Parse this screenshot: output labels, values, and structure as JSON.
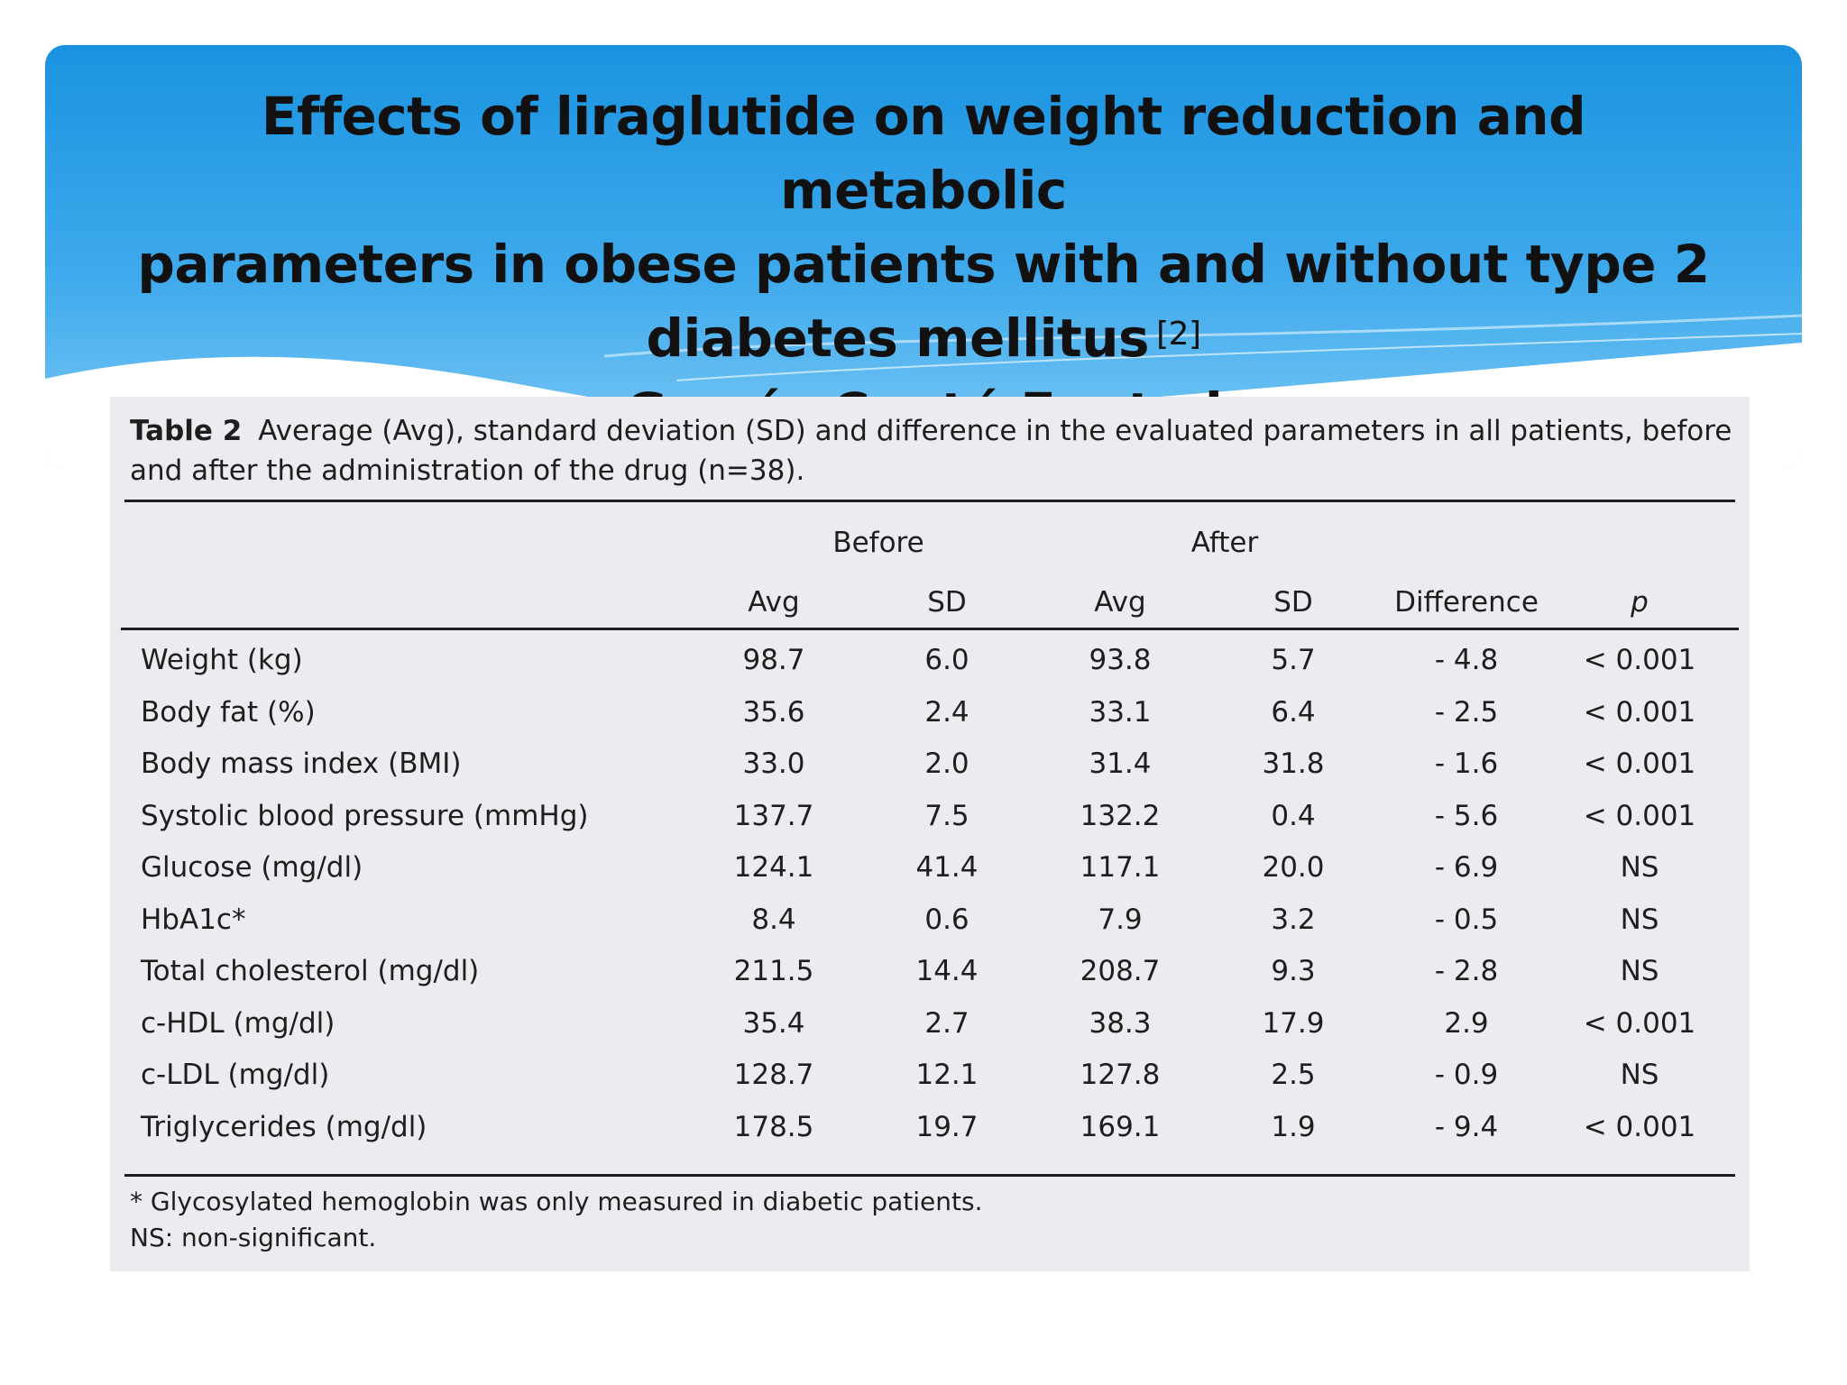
{
  "title": {
    "line1": "Effects of liraglutide on weight reduction and metabolic",
    "line2": "parameters in obese patients with and without type 2",
    "line3": "diabetes mellitus",
    "ref": "[2]",
    "line4": "García-Cantú E. et al"
  },
  "table": {
    "caption_label": "Table 2",
    "caption_text": "Average (Avg), standard deviation (SD) and difference in the evaluated parameters in all patients, before and after the administration of the drug (n=38).",
    "group_before": "Before",
    "group_after": "After",
    "columns": [
      "Avg",
      "SD",
      "Avg",
      "SD",
      "Difference",
      "p"
    ],
    "rows": [
      {
        "label": "Weight (kg)",
        "cells": [
          "98.7",
          "6.0",
          "93.8",
          "5.7",
          "- 4.8",
          "< 0.001"
        ]
      },
      {
        "label": "Body fat (%)",
        "cells": [
          "35.6",
          "2.4",
          "33.1",
          "6.4",
          "- 2.5",
          "< 0.001"
        ]
      },
      {
        "label": "Body mass index (BMI)",
        "cells": [
          "33.0",
          "2.0",
          "31.4",
          "31.8",
          "- 1.6",
          "< 0.001"
        ]
      },
      {
        "label": "Systolic blood pressure (mmHg)",
        "cells": [
          "137.7",
          "7.5",
          "132.2",
          "0.4",
          "- 5.6",
          "< 0.001"
        ]
      },
      {
        "label": "Glucose (mg/dl)",
        "cells": [
          "124.1",
          "41.4",
          "117.1",
          "20.0",
          "- 6.9",
          "NS"
        ]
      },
      {
        "label": "HbA1c*",
        "cells": [
          "8.4",
          "0.6",
          "7.9",
          "3.2",
          "- 0.5",
          "NS"
        ]
      },
      {
        "label": "Total cholesterol (mg/dl)",
        "cells": [
          "211.5",
          "14.4",
          "208.7",
          "9.3",
          "- 2.8",
          "NS"
        ]
      },
      {
        "label": "c-HDL (mg/dl)",
        "cells": [
          "35.4",
          "2.7",
          "38.3",
          "17.9",
          "2.9",
          "< 0.001"
        ]
      },
      {
        "label": "c-LDL (mg/dl)",
        "cells": [
          "128.7",
          "12.1",
          "127.8",
          "2.5",
          "- 0.9",
          "NS"
        ]
      },
      {
        "label": "Triglycerides (mg/dl)",
        "cells": [
          "178.5",
          "19.7",
          "169.1",
          "1.9",
          "- 9.4",
          "< 0.001"
        ]
      }
    ],
    "footnote1": "* Glycosylated hemoglobin was only measured in diabetic patients.",
    "footnote2": "NS: non-significant."
  }
}
